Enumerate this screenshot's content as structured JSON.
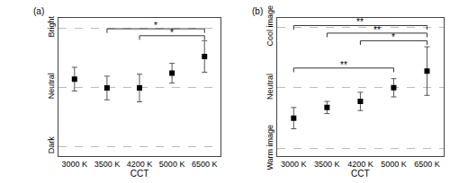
{
  "chart_data": [
    {
      "type": "scatter",
      "title": "(a)",
      "x_label": "CCT",
      "categories": [
        "3000 K",
        "3500 K",
        "4200 K",
        "5000 K",
        "6500 K"
      ],
      "values": [
        4.4,
        3.95,
        3.95,
        4.7,
        5.55
      ],
      "errors": [
        0.6,
        0.6,
        0.7,
        0.5,
        0.8
      ],
      "color": "#000000",
      "marker": "square",
      "grid": true,
      "ylim": [
        0.5,
        7.5
      ],
      "yticks": [
        {
          "value": 1,
          "label": "Dark"
        },
        {
          "value": 4,
          "label": "Neutral"
        },
        {
          "value": 7,
          "label": "Bright"
        }
      ],
      "significance": [
        {
          "from": "3500 K",
          "to": "6500 K",
          "y": 6.95,
          "label": "*"
        },
        {
          "from": "4200 K",
          "to": "6500 K",
          "y": 6.6,
          "label": "*"
        }
      ]
    },
    {
      "type": "scatter",
      "title": "(b)",
      "x_label": "CCT",
      "categories": [
        "3000 K",
        "3500 K",
        "4200 K",
        "5000 K",
        "6500 K"
      ],
      "values": [
        2.0,
        2.35,
        2.55,
        3.0,
        3.55
      ],
      "errors": [
        0.35,
        0.2,
        0.3,
        0.3,
        0.8
      ],
      "color": "#000000",
      "marker": "square",
      "grid": true,
      "ylim": [
        0.75,
        5.3
      ],
      "yticks": [
        {
          "value": 1,
          "label": "Warm image"
        },
        {
          "value": 3,
          "label": "Neutral"
        },
        {
          "value": 5,
          "label": "Cool image"
        }
      ],
      "significance": [
        {
          "from": "3000 K",
          "to": "6500 K",
          "y": 5.05,
          "label": "**"
        },
        {
          "from": "3500 K",
          "to": "6500 K",
          "y": 4.8,
          "label": "**"
        },
        {
          "from": "4200 K",
          "to": "6500 K",
          "y": 4.55,
          "label": "*"
        },
        {
          "from": "3000 K",
          "to": "5000 K",
          "y": 3.65,
          "label": "**"
        }
      ]
    }
  ]
}
